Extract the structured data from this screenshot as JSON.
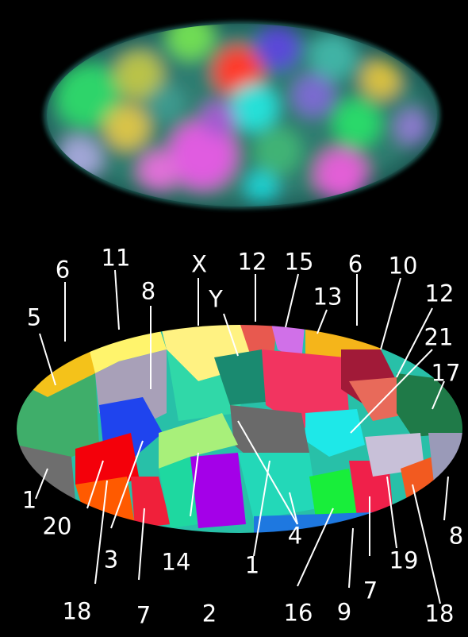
{
  "labels": [
    "X",
    "Y",
    "1",
    "1",
    "2",
    "3",
    "4",
    "5",
    "6",
    "6",
    "7",
    "7",
    "8",
    "8",
    "9",
    "10",
    "11",
    "12",
    "12",
    "13",
    "14",
    "15",
    "16",
    "17",
    "18",
    "18",
    "19",
    "20",
    "21"
  ]
}
